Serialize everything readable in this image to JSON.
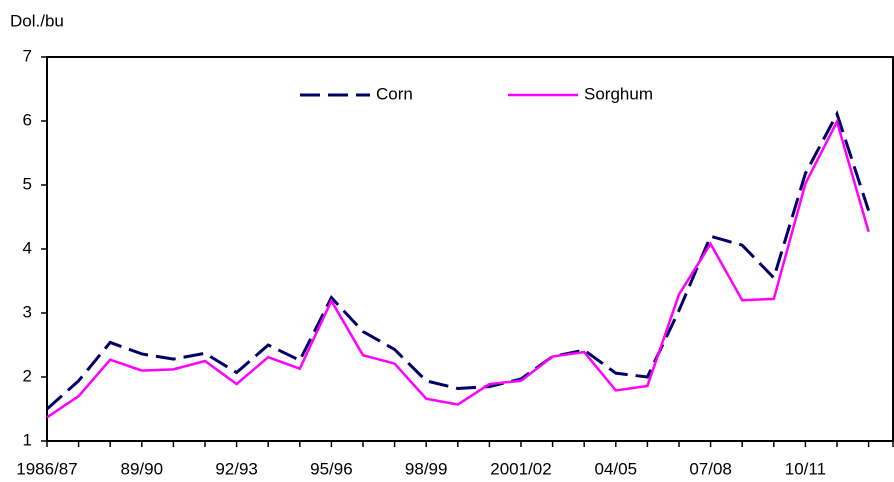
{
  "chart_data": {
    "type": "line",
    "y_label": "Dol./bu",
    "categories": [
      "1986/87",
      null,
      null,
      "89/90",
      null,
      null,
      "92/93",
      null,
      null,
      "95/96",
      null,
      null,
      "98/99",
      null,
      null,
      "2001/02",
      null,
      null,
      "04/05",
      null,
      null,
      "07/08",
      null,
      null,
      "10/11",
      null,
      null
    ],
    "series": [
      {
        "name": "Corn",
        "color": "#000066",
        "dashed": true,
        "values": [
          1.5,
          1.94,
          2.54,
          2.36,
          2.28,
          2.37,
          2.07,
          2.5,
          2.26,
          3.24,
          2.71,
          2.43,
          1.94,
          1.82,
          1.85,
          1.97,
          2.32,
          2.42,
          2.06,
          2.0,
          3.04,
          4.2,
          4.06,
          3.55,
          5.18,
          6.11,
          4.6
        ]
      },
      {
        "name": "Sorghum",
        "color": "#ff00ff",
        "dashed": false,
        "values": [
          1.37,
          1.7,
          2.27,
          2.1,
          2.12,
          2.25,
          1.89,
          2.31,
          2.13,
          3.19,
          2.34,
          2.21,
          1.66,
          1.57,
          1.89,
          1.94,
          2.32,
          2.39,
          1.79,
          1.86,
          3.29,
          4.08,
          3.2,
          3.22,
          5.02,
          5.99,
          4.27
        ]
      }
    ],
    "ylim": [
      1,
      7
    ],
    "yticks": [
      1,
      2,
      3,
      4,
      5,
      6,
      7
    ],
    "legend": "top-center"
  }
}
